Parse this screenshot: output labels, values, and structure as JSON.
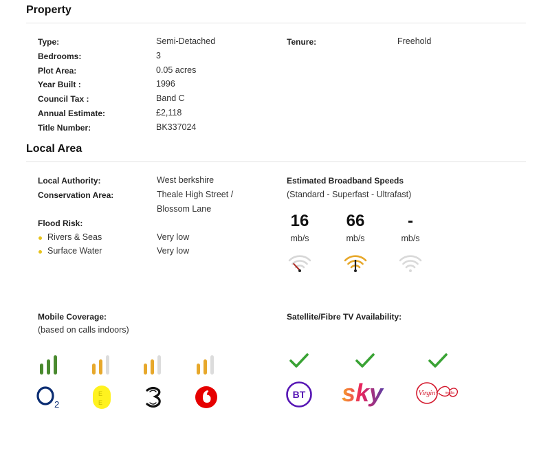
{
  "property": {
    "title": "Property",
    "fields": [
      {
        "label": "Type:",
        "value": "Semi-Detached"
      },
      {
        "label": "Bedrooms:",
        "value": "3"
      },
      {
        "label": "Plot Area:",
        "value": "0.05 acres"
      },
      {
        "label": "Year Built :",
        "value": "1996"
      },
      {
        "label": "Council Tax :",
        "value": "Band C"
      },
      {
        "label": "Annual Estimate:",
        "value": "£2,118"
      },
      {
        "label": "Title Number:",
        "value": "BK337024"
      }
    ],
    "tenure": {
      "label": "Tenure:",
      "value": "Freehold"
    }
  },
  "local_area": {
    "title": "Local Area",
    "authority": {
      "label": "Local Authority:",
      "value": "West berkshire"
    },
    "conservation": {
      "label": "Conservation Area:",
      "value_line1": "Theale High Street /",
      "value_line2": "Blossom Lane"
    },
    "flood": {
      "label": "Flood Risk:",
      "items": [
        {
          "label": "Rivers & Seas",
          "value": "Very low"
        },
        {
          "label": "Surface Water",
          "value": "Very low"
        }
      ]
    },
    "broadband": {
      "title": "Estimated Broadband Speeds",
      "subtitle": "(Standard - Superfast - Ultrafast)",
      "speeds": [
        {
          "value": "16",
          "unit": "mb/s",
          "icon": "wifi-standard-icon",
          "color": "#b0302a"
        },
        {
          "value": "66",
          "unit": "mb/s",
          "icon": "wifi-superfast-icon",
          "color": "#e7a82b"
        },
        {
          "value": "-",
          "unit": "mb/s",
          "icon": "wifi-ultrafast-icon",
          "color": "#d8d8d8"
        }
      ]
    },
    "mobile": {
      "title": "Mobile Coverage:",
      "subtitle": "(based on calls indoors)",
      "providers": [
        {
          "name": "O2",
          "icon": "o2-logo-icon",
          "signal_bars": 3,
          "bar_color": "#4a8a2f"
        },
        {
          "name": "EE",
          "icon": "ee-logo-icon",
          "signal_bars": 2,
          "bar_color": "#e7a82b"
        },
        {
          "name": "Three",
          "icon": "three-logo-icon",
          "signal_bars": 2,
          "bar_color": "#e7a82b"
        },
        {
          "name": "Vodafone",
          "icon": "vodafone-logo-icon",
          "signal_bars": 2,
          "bar_color": "#e7a82b"
        }
      ]
    },
    "tv": {
      "title": "Satellite/Fibre TV Availability:",
      "providers": [
        {
          "name": "BT",
          "icon": "bt-logo-icon",
          "available": true
        },
        {
          "name": "sky",
          "icon": "sky-logo-icon",
          "available": true
        },
        {
          "name": "Virgin media",
          "icon": "virgin-media-logo-icon",
          "available": true
        }
      ],
      "check_color": "#3aa335"
    }
  }
}
